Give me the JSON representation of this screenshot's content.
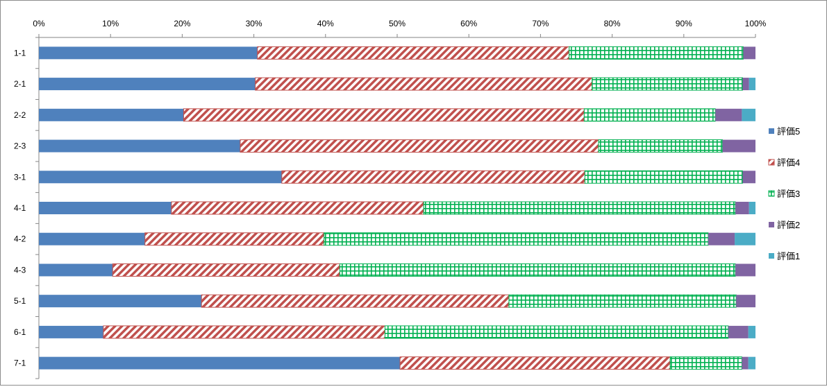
{
  "chart_data": {
    "type": "bar",
    "orientation": "horizontal",
    "stacked": "percent",
    "categories": [
      "1-1",
      "2-1",
      "2-2",
      "2-3",
      "3-1",
      "4-1",
      "4-2",
      "4-3",
      "5-1",
      "6-1",
      "7-1"
    ],
    "series": [
      {
        "name": "評価5",
        "color": "#4F81BD",
        "pattern": "solid",
        "values": [
          30.5,
          30.2,
          20.2,
          28.1,
          33.9,
          18.5,
          14.8,
          10.3,
          22.7,
          9.0,
          50.4
        ]
      },
      {
        "name": "評価4",
        "color": "#C0504D",
        "pattern": "diagonal-stripe",
        "values": [
          43.5,
          47.0,
          55.9,
          50.0,
          42.3,
          35.2,
          25.0,
          31.7,
          42.9,
          39.3,
          37.7
        ]
      },
      {
        "name": "評価3",
        "color": "#00B050",
        "pattern": "grid",
        "values": [
          24.3,
          21.0,
          18.3,
          17.3,
          22.0,
          43.5,
          53.6,
          55.2,
          31.7,
          47.9,
          10.0
        ]
      },
      {
        "name": "評価2",
        "color": "#8064A2",
        "pattern": "solid",
        "values": [
          1.7,
          0.9,
          3.7,
          4.6,
          1.8,
          1.9,
          3.7,
          2.8,
          2.7,
          2.8,
          0.9
        ]
      },
      {
        "name": "評価1",
        "color": "#4BACC6",
        "pattern": "solid",
        "values": [
          0.0,
          0.9,
          1.9,
          0.0,
          0.0,
          0.9,
          2.9,
          0.0,
          0.0,
          1.0,
          1.0
        ]
      }
    ],
    "x_ticks": [
      "0%",
      "10%",
      "20%",
      "30%",
      "40%",
      "50%",
      "60%",
      "70%",
      "80%",
      "90%",
      "100%"
    ],
    "xlim": [
      0,
      100
    ],
    "axis_position": "top",
    "grid": false,
    "legend": "right",
    "title": "",
    "xlabel": "",
    "ylabel": ""
  }
}
